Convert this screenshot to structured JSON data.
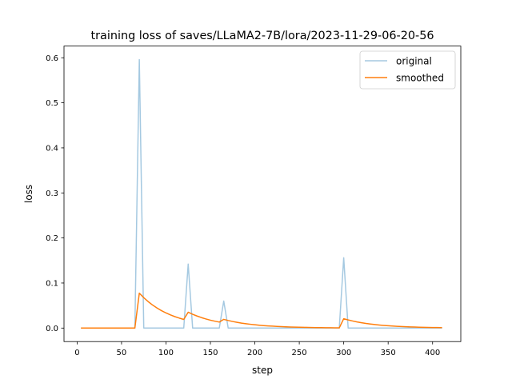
{
  "chart_data": {
    "type": "line",
    "title": "training loss of saves/LLaMA2-7B/lora/2023-11-29-06-20-56",
    "xlabel": "step",
    "ylabel": "loss",
    "xlim": [
      -14.75,
      431.75
    ],
    "ylim": [
      -0.03,
      0.626
    ],
    "xticks": [
      0,
      50,
      100,
      150,
      200,
      250,
      300,
      350,
      400
    ],
    "xtick_labels": [
      "0",
      "50",
      "100",
      "150",
      "200",
      "250",
      "300",
      "350",
      "400"
    ],
    "yticks": [
      0.0,
      0.1,
      0.2,
      0.3,
      0.4,
      0.5,
      0.6
    ],
    "ytick_labels": [
      "0.0",
      "0.1",
      "0.2",
      "0.3",
      "0.4",
      "0.5",
      "0.6"
    ],
    "grid": false,
    "legend_position": "upper right",
    "series": [
      {
        "name": "original",
        "color": "#1f77b4",
        "alpha": 0.4,
        "x": [
          5,
          10,
          15,
          20,
          25,
          30,
          35,
          40,
          45,
          50,
          55,
          60,
          65,
          70,
          75,
          80,
          85,
          90,
          95,
          100,
          105,
          110,
          115,
          120,
          125,
          130,
          135,
          140,
          145,
          150,
          155,
          160,
          165,
          170,
          175,
          180,
          185,
          190,
          195,
          200,
          205,
          210,
          215,
          220,
          225,
          230,
          235,
          240,
          245,
          250,
          255,
          260,
          265,
          270,
          275,
          280,
          285,
          290,
          295,
          300,
          305,
          310,
          315,
          320,
          325,
          330,
          335,
          340,
          345,
          350,
          355,
          360,
          365,
          370,
          375,
          380,
          385,
          390,
          395,
          400,
          405,
          410
        ],
        "y": [
          0,
          0,
          0,
          0,
          0,
          0,
          0,
          0,
          0,
          0,
          0,
          0,
          0,
          0.596,
          0,
          0,
          0,
          0,
          0,
          0,
          0,
          0,
          0,
          0,
          0.142,
          0,
          0,
          0,
          0,
          0,
          0,
          0,
          0.06,
          0,
          0,
          0,
          0,
          0,
          0,
          0,
          0,
          0,
          0,
          0,
          0,
          0,
          0,
          0,
          0,
          0,
          0,
          0,
          0,
          0,
          0,
          0,
          0,
          0,
          0,
          0.156,
          0,
          0,
          0,
          0,
          0,
          0,
          0,
          0,
          0,
          0,
          0,
          0,
          0,
          0,
          0,
          0,
          0,
          0,
          0,
          0,
          0,
          0
        ]
      },
      {
        "name": "smoothed",
        "color": "#ff7f0e",
        "alpha": 1.0,
        "x": [
          5,
          10,
          15,
          20,
          25,
          30,
          35,
          40,
          45,
          50,
          55,
          60,
          65,
          70,
          75,
          80,
          85,
          90,
          95,
          100,
          105,
          110,
          115,
          120,
          125,
          130,
          135,
          140,
          145,
          150,
          155,
          160,
          165,
          170,
          175,
          180,
          185,
          190,
          195,
          200,
          205,
          210,
          215,
          220,
          225,
          230,
          235,
          240,
          245,
          250,
          255,
          260,
          265,
          270,
          275,
          280,
          285,
          290,
          295,
          300,
          305,
          310,
          315,
          320,
          325,
          330,
          335,
          340,
          345,
          350,
          355,
          360,
          365,
          370,
          375,
          380,
          385,
          390,
          395,
          400,
          405,
          410
        ],
        "y": [
          0,
          0,
          0,
          0,
          0,
          0,
          0,
          0,
          0,
          0,
          0,
          0,
          0,
          0.0775,
          0.0674,
          0.0587,
          0.051,
          0.0444,
          0.0386,
          0.0336,
          0.0292,
          0.0254,
          0.0221,
          0.0192,
          0.0352,
          0.0306,
          0.0267,
          0.0232,
          0.0202,
          0.0175,
          0.0153,
          0.0133,
          0.0193,
          0.0168,
          0.0146,
          0.0127,
          0.011,
          0.0096,
          0.0084,
          0.0073,
          0.0063,
          0.0055,
          0.0048,
          0.0042,
          0.0036,
          0.0032,
          0.0027,
          0.0024,
          0.0021,
          0.0018,
          0.0016,
          0.0014,
          0.0012,
          0.001,
          0.0009,
          0.0008,
          0.0007,
          0.0006,
          0.0005,
          0.0207,
          0.018,
          0.0157,
          0.0136,
          0.0119,
          0.0103,
          0.009,
          0.0078,
          0.0068,
          0.0059,
          0.0051,
          0.0045,
          0.0039,
          0.0034,
          0.003,
          0.0026,
          0.0022,
          0.0019,
          0.0017,
          0.0015,
          0.0013,
          0.0011,
          0.001
        ]
      }
    ]
  }
}
